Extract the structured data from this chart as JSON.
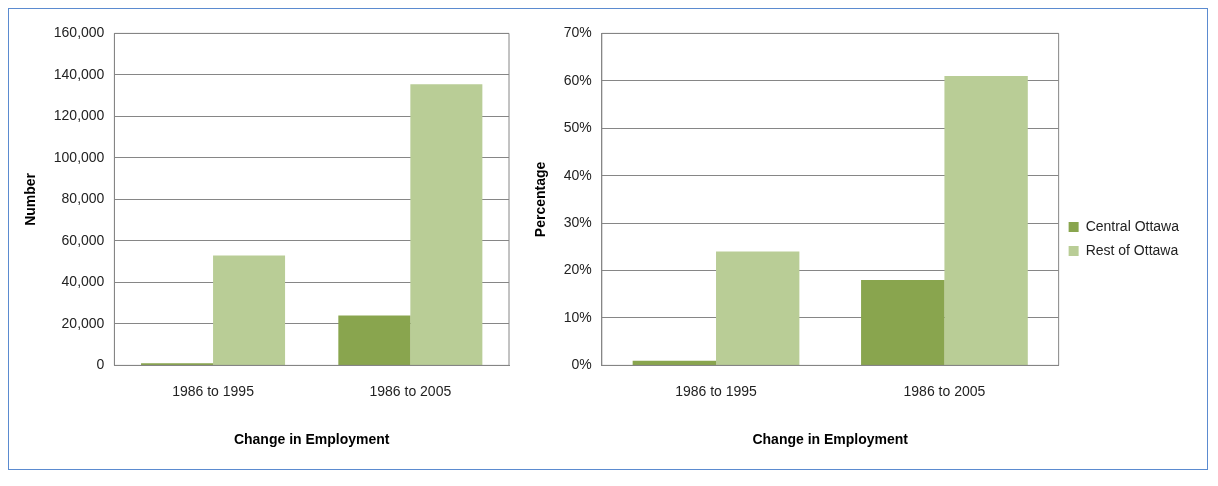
{
  "chart_data": [
    {
      "type": "bar",
      "categories": [
        "1986 to 1995",
        "1986 to 2005"
      ],
      "xlabel": "Change in Employment",
      "ylabel": "Number",
      "series": [
        {
          "color": "#89a54e",
          "values": [
            1000,
            24000
          ]
        },
        {
          "color": "#b9cd96",
          "values": [
            53000,
            135500
          ]
        }
      ],
      "ylim": [
        0,
        160000
      ],
      "yticks": [
        {
          "value": 0,
          "label": "0"
        },
        {
          "value": 20000,
          "label": "20,000"
        },
        {
          "value": 40000,
          "label": "40,000"
        },
        {
          "value": 60000,
          "label": "60,000"
        },
        {
          "value": 80000,
          "label": "80,000"
        },
        {
          "value": 100000,
          "label": "100,000"
        },
        {
          "value": 120000,
          "label": "120,000"
        },
        {
          "value": 140000,
          "label": "140,000"
        },
        {
          "value": 160000,
          "label": "160,000"
        }
      ],
      "grid": "y",
      "legend": false
    },
    {
      "type": "bar",
      "categories": [
        "1986 to 1995",
        "1986 to 2005"
      ],
      "xlabel": "Change in Employment",
      "ylabel": "Percentage",
      "series": [
        {
          "name": "Central Ottawa",
          "color": "#89a54e",
          "values": [
            1,
            18
          ]
        },
        {
          "name": "Rest of Ottawa",
          "color": "#b9cd96",
          "values": [
            24,
            61
          ]
        }
      ],
      "ylim": [
        0,
        70
      ],
      "yticks": [
        {
          "value": 0,
          "label": "0%"
        },
        {
          "value": 10,
          "label": "10%"
        },
        {
          "value": 20,
          "label": "20%"
        },
        {
          "value": 30,
          "label": "30%"
        },
        {
          "value": 40,
          "label": "40%"
        },
        {
          "value": 50,
          "label": "50%"
        },
        {
          "value": 60,
          "label": "60%"
        },
        {
          "value": 70,
          "label": "70%"
        }
      ],
      "grid": "y",
      "legend": "right"
    }
  ]
}
